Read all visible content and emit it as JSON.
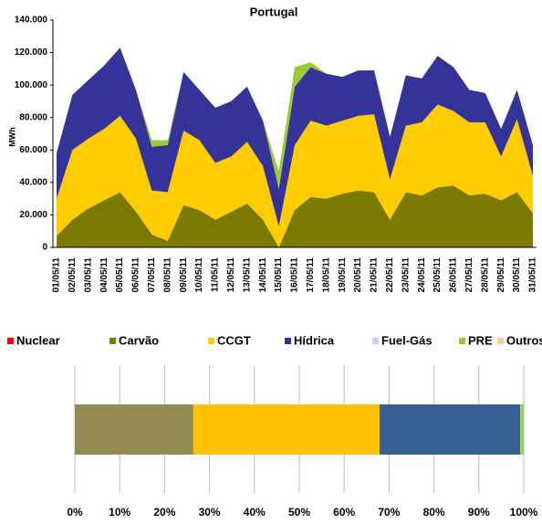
{
  "chart_data": [
    {
      "type": "area",
      "title": "Portugal",
      "ylabel": "MWh",
      "categories": [
        "01/05/11",
        "02/05/11",
        "03/05/11",
        "04/05/11",
        "05/05/11",
        "06/05/11",
        "07/05/11",
        "08/05/11",
        "09/05/11",
        "10/05/11",
        "11/05/11",
        "12/05/11",
        "13/05/11",
        "14/05/11",
        "15/05/11",
        "16/05/11",
        "17/05/11",
        "18/05/11",
        "19/05/11",
        "20/05/11",
        "21/05/11",
        "22/05/11",
        "23/05/11",
        "24/05/11",
        "25/05/11",
        "26/05/11",
        "27/05/11",
        "28/05/11",
        "29/05/11",
        "30/05/11",
        "31/05/11"
      ],
      "series": [
        {
          "name": "Nuclear",
          "color": "#ff0000",
          "values": [
            0,
            0,
            0,
            0,
            0,
            0,
            0,
            0,
            0,
            0,
            0,
            0,
            0,
            0,
            0,
            0,
            0,
            0,
            0,
            0,
            0,
            0,
            0,
            0,
            0,
            0,
            0,
            0,
            0,
            0,
            0
          ]
        },
        {
          "name": "Carvão",
          "color": "#7a7a00",
          "values": [
            7000,
            17000,
            24000,
            29000,
            34000,
            22000,
            8000,
            4000,
            26000,
            23000,
            17000,
            22000,
            27000,
            17000,
            0,
            23000,
            31000,
            30000,
            33000,
            35000,
            34000,
            17000,
            34000,
            32000,
            37000,
            38000,
            32000,
            33000,
            29000,
            34000,
            21000
          ]
        },
        {
          "name": "CCGT",
          "color": "#ffcc00",
          "values": [
            23000,
            43000,
            43000,
            44000,
            47000,
            45000,
            27000,
            30000,
            46000,
            43000,
            35000,
            34000,
            38000,
            33000,
            13000,
            40000,
            47000,
            45000,
            45000,
            46000,
            48000,
            25000,
            41000,
            45000,
            51000,
            46000,
            45000,
            44000,
            27000,
            45000,
            23000
          ]
        },
        {
          "name": "Hídrica",
          "color": "#333399",
          "values": [
            28000,
            34000,
            36000,
            39000,
            42000,
            30000,
            27000,
            29000,
            36000,
            31000,
            34000,
            34000,
            34000,
            28000,
            23000,
            36000,
            33000,
            32000,
            27000,
            28000,
            27000,
            26000,
            31000,
            27000,
            30000,
            27000,
            20000,
            18000,
            17000,
            18000,
            19000
          ]
        },
        {
          "name": "Fuel-Gás",
          "color": "#ccccff",
          "values": [
            0,
            0,
            0,
            0,
            0,
            0,
            0,
            0,
            0,
            0,
            0,
            0,
            0,
            0,
            0,
            0,
            0,
            0,
            0,
            0,
            0,
            0,
            0,
            0,
            0,
            0,
            0,
            0,
            0,
            0,
            0
          ]
        },
        {
          "name": "PRE",
          "color": "#99cc33",
          "values": [
            0,
            0,
            0,
            0,
            0,
            0,
            4000,
            3000,
            0,
            0,
            0,
            0,
            0,
            0,
            11000,
            12000,
            3000,
            0,
            0,
            0,
            0,
            0,
            0,
            0,
            0,
            0,
            0,
            0,
            0,
            0,
            0
          ]
        },
        {
          "name": "Outros",
          "color": "#ffcc99",
          "values": [
            0,
            0,
            0,
            0,
            0,
            0,
            0,
            0,
            0,
            0,
            0,
            0,
            0,
            0,
            0,
            0,
            0,
            0,
            0,
            0,
            0,
            0,
            0,
            0,
            0,
            0,
            0,
            0,
            0,
            0,
            0
          ]
        }
      ],
      "ylim": [
        0,
        140000
      ],
      "yticks": [
        0,
        {
          "value": 20000,
          "label": "20.000"
        },
        {
          "value": 40000,
          "label": "40.000"
        },
        {
          "value": 60000,
          "label": "60.000"
        },
        {
          "value": 80000,
          "label": "80.000"
        },
        {
          "value": 100000,
          "label": "100.000"
        },
        {
          "value": 120000,
          "label": "120.000"
        },
        {
          "value": 140000,
          "label": "140.000"
        }
      ],
      "grid": false
    },
    {
      "type": "stacked-percent-bar",
      "series": [
        {
          "color": "#948a54",
          "values": [
            26.4
          ]
        },
        {
          "color": "#ffc000",
          "values": [
            41.5
          ]
        },
        {
          "color": "#366092",
          "values": [
            31.3
          ]
        },
        {
          "color": "#92d050",
          "values": [
            0.8
          ]
        }
      ],
      "xlim": [
        0,
        100
      ],
      "xticks": [
        {
          "value": 0,
          "label": "0%"
        },
        {
          "value": 10,
          "label": "10%"
        },
        {
          "value": 20,
          "label": "20%"
        },
        {
          "value": 30,
          "label": "30%"
        },
        {
          "value": 40,
          "label": "40%"
        },
        {
          "value": 50,
          "label": "50%"
        },
        {
          "value": 60,
          "label": "60%"
        },
        {
          "value": 70,
          "label": "70%"
        },
        {
          "value": 80,
          "label": "80%"
        },
        {
          "value": 90,
          "label": "90%"
        },
        {
          "value": 100,
          "label": "100%"
        }
      ],
      "grid": true
    }
  ]
}
